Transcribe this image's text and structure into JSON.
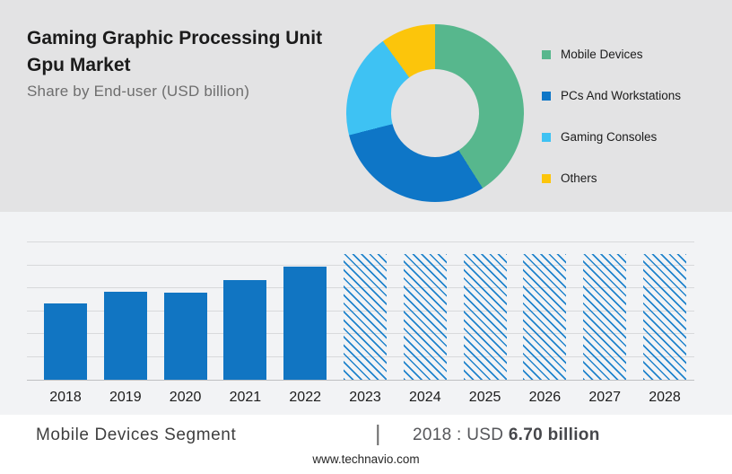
{
  "header": {
    "title": "Gaming Graphic Processing Unit Gpu Market",
    "subtitle": "Share by End-user (USD billion)"
  },
  "legend": {
    "items": [
      {
        "label": "Mobile Devices",
        "color": "#57b78d"
      },
      {
        "label": "PCs And Workstations",
        "color": "#0e76c7"
      },
      {
        "label": "Gaming Consoles",
        "color": "#3ec2f3"
      },
      {
        "label": "Others",
        "color": "#fcc50b"
      }
    ]
  },
  "chart_data": [
    {
      "type": "pie",
      "donut": true,
      "title": "Share by End-user (USD billion)",
      "labels": [
        "Mobile Devices",
        "PCs And Workstations",
        "Gaming Consoles",
        "Others"
      ],
      "values_pct": [
        41,
        30,
        19,
        10
      ],
      "colors": [
        "#57b78d",
        "#0e76c7",
        "#3ec2f3",
        "#fcc50b"
      ],
      "legend_position": "right",
      "start_angle_deg": 0,
      "direction": "clockwise"
    },
    {
      "type": "bar",
      "categories": [
        "2018",
        "2019",
        "2020",
        "2021",
        "2022",
        "2023",
        "2024",
        "2025",
        "2026",
        "2027",
        "2028"
      ],
      "values": [
        6.7,
        7.7,
        7.6,
        8.7,
        9.9,
        11.0,
        11.0,
        11.0,
        11.0,
        11.0,
        11.0
      ],
      "forecast_from_index": 5,
      "bar_color": "#1175c2",
      "title": "",
      "xlabel": "",
      "ylabel": "",
      "ylim": [
        0,
        12
      ],
      "grid_step": 2,
      "grid": "on",
      "note": "2023-2028 are forecast bars drawn with diagonal blue hatching"
    }
  ],
  "footer": {
    "segment_label": "Mobile Devices Segment",
    "separator": "|",
    "value_prefix": "2018 : USD ",
    "value_bold": "6.70 billion",
    "website": "www.technavio.com"
  }
}
